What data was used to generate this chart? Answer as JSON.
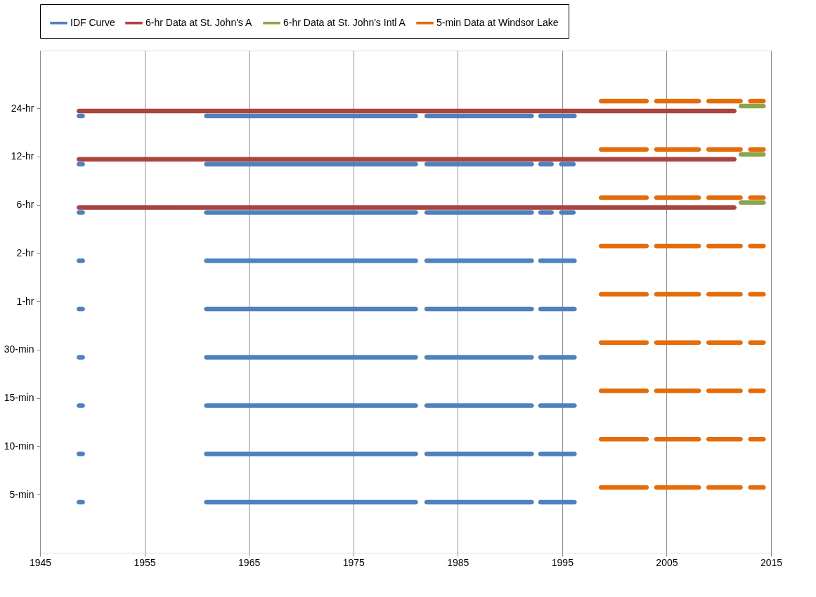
{
  "chart_data": {
    "type": "bar",
    "orientation": "horizontal",
    "categories": [
      "24-hr",
      "12-hr",
      "6-hr",
      "2-hr",
      "1-hr",
      "30-min",
      "15-min",
      "10-min",
      "5-min"
    ],
    "xlim": [
      1945,
      2015
    ],
    "xticks": [
      1945,
      1955,
      1965,
      1975,
      1985,
      1995,
      2005,
      2015
    ],
    "grid": "x",
    "legend": "top",
    "series": [
      {
        "name": "IDF Curve",
        "color": "#4f81bd",
        "base": [
          1948.5,
          1948.5,
          1948.5,
          1948.5,
          1948.5,
          1948.5,
          1948.5,
          1948.5,
          1948.5
        ],
        "values": [
          0.8,
          0.8,
          0.8,
          0.8,
          0.8,
          0.8,
          0.8,
          0.8,
          0.8
        ]
      },
      {
        "color": "#4f81bd",
        "base": [
          1960.7,
          1960.7,
          1960.7,
          1960.7,
          1960.7,
          1960.7,
          1960.7,
          1960.7,
          1960.7
        ],
        "values": [
          20.5,
          20.5,
          20.5,
          20.5,
          20.5,
          20.5,
          20.5,
          20.5,
          20.5
        ]
      },
      {
        "color": "#4f81bd",
        "base": [
          1981.8,
          1981.8,
          1981.8,
          1981.8,
          1981.8,
          1981.8,
          1981.8,
          1981.8,
          1981.8
        ],
        "values": [
          10.5,
          10.5,
          10.5,
          10.5,
          10.5,
          10.5,
          10.5,
          10.5,
          10.5
        ]
      },
      {
        "color": "#4f81bd",
        "base": [
          1992.7,
          1992.7,
          1992.7,
          1992.7,
          1992.7,
          1992.7,
          1992.7,
          1992.7,
          1992.7
        ],
        "values": [
          3.7,
          1.5,
          1.5,
          3.7,
          3.7,
          3.7,
          3.7,
          3.7,
          3.7
        ]
      },
      {
        "color": "#4f81bd",
        "base": [
          null,
          1994.7,
          1994.7,
          null,
          null,
          null,
          null,
          null,
          null
        ],
        "values": [
          null,
          1.6,
          1.6,
          null,
          null,
          null,
          null,
          null,
          null
        ]
      },
      {
        "name": "6-hr Data at St. John's A",
        "color": "#a9443f",
        "base": [
          1948.5,
          1948.5,
          1948.5,
          null,
          null,
          null,
          null,
          null,
          null
        ],
        "values": [
          63.2,
          63.2,
          63.2,
          null,
          null,
          null,
          null,
          null,
          null
        ]
      },
      {
        "name": "6-hr Data at St. John's Intl A",
        "color": "#8aa54c",
        "base": [
          2011.9,
          2011.9,
          2011.9,
          null,
          null,
          null,
          null,
          null,
          null
        ],
        "values": [
          2.6,
          2.6,
          2.6,
          null,
          null,
          null,
          null,
          null,
          null
        ]
      },
      {
        "name": "5-min Data at Windsor Lake",
        "color": "#e46c0a",
        "base": [
          1998.5,
          1998.5,
          1998.5,
          1998.5,
          1998.5,
          1998.5,
          1998.5,
          1998.5,
          1998.5
        ],
        "values": [
          4.8,
          4.8,
          4.8,
          4.8,
          4.8,
          4.8,
          4.8,
          4.8,
          4.8
        ]
      },
      {
        "color": "#e46c0a",
        "base": [
          2003.8,
          2003.8,
          2003.8,
          2003.8,
          2003.8,
          2003.8,
          2003.8,
          2003.8,
          2003.8
        ],
        "values": [
          4.5,
          4.5,
          4.5,
          4.5,
          4.5,
          4.5,
          4.5,
          4.5,
          4.5
        ]
      },
      {
        "color": "#e46c0a",
        "base": [
          2008.8,
          2008.8,
          2008.8,
          2008.8,
          2008.8,
          2008.8,
          2008.8,
          2008.8,
          2008.8
        ],
        "values": [
          3.5,
          3.5,
          3.5,
          3.5,
          3.5,
          3.5,
          3.5,
          3.5,
          3.5
        ]
      },
      {
        "color": "#e46c0a",
        "base": [
          2012.8,
          2012.8,
          2012.8,
          2012.8,
          2012.8,
          2012.8,
          2012.8,
          2012.8,
          2012.8
        ],
        "values": [
          1.7,
          1.7,
          1.7,
          1.7,
          1.7,
          1.7,
          1.7,
          1.7,
          1.7
        ]
      }
    ]
  }
}
